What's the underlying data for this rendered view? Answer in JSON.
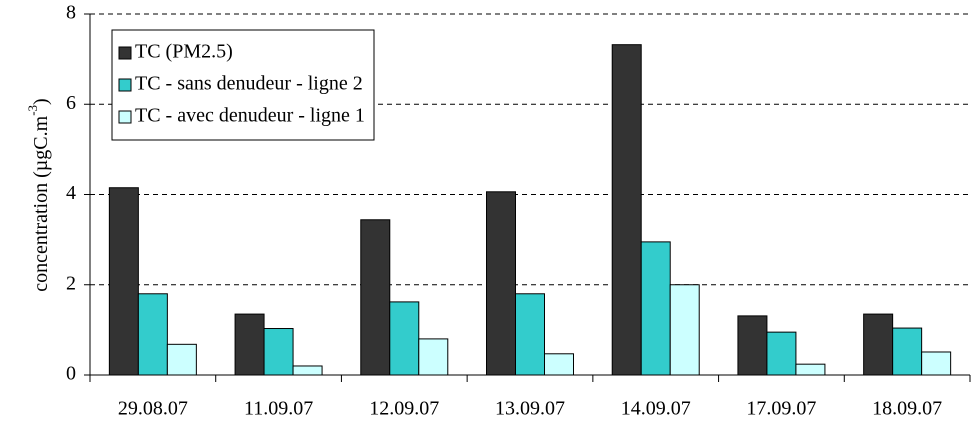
{
  "chart_data": {
    "type": "bar",
    "ylabel_parts": [
      "concentration (µgC.m",
      "-3",
      ")"
    ],
    "categories": [
      "29.08.07",
      "11.09.07",
      "12.09.07",
      "13.09.07",
      "14.09.07",
      "17.09.07",
      "18.09.07"
    ],
    "series": [
      {
        "name": "TC (PM2.5)",
        "color": "#333333",
        "values": [
          4.15,
          1.35,
          3.44,
          4.06,
          7.32,
          1.31,
          1.35
        ]
      },
      {
        "name": "TC - sans denudeur - ligne 2",
        "color": "#33cccc",
        "values": [
          1.8,
          1.03,
          1.62,
          1.8,
          2.95,
          0.95,
          1.04
        ]
      },
      {
        "name": "TC - avec denudeur - ligne 1",
        "color": "#ccffff",
        "values": [
          0.68,
          0.2,
          0.8,
          0.47,
          2.0,
          0.24,
          0.51
        ]
      }
    ],
    "ylim": [
      0,
      8
    ],
    "yticks": [
      0,
      2,
      4,
      6,
      8
    ],
    "grid": true,
    "legend": "upper left"
  }
}
